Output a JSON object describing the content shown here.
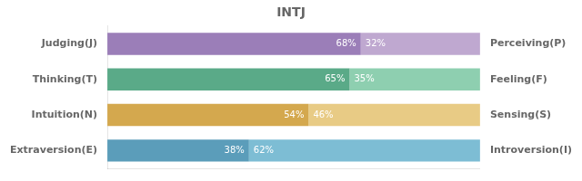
{
  "chart_data": {
    "type": "bar",
    "orientation": "horizontal",
    "stacked": true,
    "title": "INTJ",
    "categories": [
      "Judging(J)",
      "Thinking(T)",
      "Intuition(N)",
      "Extraversion(E)"
    ],
    "right_categories": [
      "Perceiving(P)",
      "Feeling(F)",
      "Sensing(S)",
      "Introversion(I)"
    ],
    "series": [
      {
        "values": [
          68,
          65,
          54,
          38
        ],
        "value_labels": [
          "68%",
          "65%",
          "54%",
          "38%"
        ],
        "colors": [
          "#9b7eb8",
          "#5aaa88",
          "#d4a84e",
          "#5b9dba"
        ]
      },
      {
        "values": [
          32,
          35,
          46,
          62
        ],
        "value_labels": [
          "32%",
          "35%",
          "46%",
          "62%"
        ],
        "colors": [
          "#bfa8d0",
          "#8ecfb0",
          "#e8cb85",
          "#7dbdd4"
        ]
      }
    ],
    "xlim": [
      0,
      100
    ],
    "grid": false,
    "data_labels": true,
    "tick_labels": "y"
  }
}
